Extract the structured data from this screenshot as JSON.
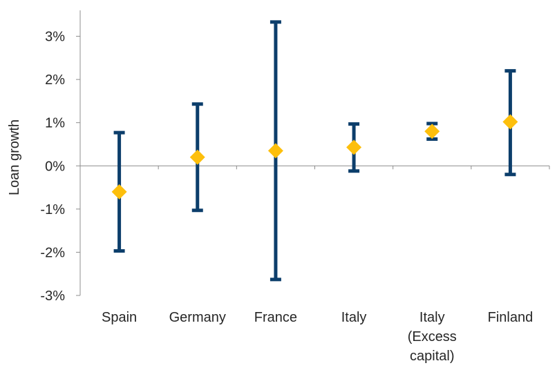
{
  "chart_data": {
    "type": "errorbar",
    "title": "",
    "xlabel": "",
    "ylabel": "Loan growth",
    "ylim": [
      -3,
      3.6
    ],
    "y_ticks": [
      -3,
      -2,
      -1,
      0,
      1,
      2,
      3
    ],
    "y_tick_labels": [
      "-3%",
      "-2%",
      "-1%",
      "0%",
      "1%",
      "2%",
      "3%"
    ],
    "grid": false,
    "legend": "none",
    "categories": [
      [
        "Spain"
      ],
      [
        "Germany"
      ],
      [
        "France"
      ],
      [
        "Italy"
      ],
      [
        "Italy",
        "(Excess",
        "capital)"
      ],
      [
        "Finland"
      ]
    ],
    "points": [
      {
        "estimate": -0.6,
        "low": -1.97,
        "high": 0.77
      },
      {
        "estimate": 0.2,
        "low": -1.03,
        "high": 1.43
      },
      {
        "estimate": 0.35,
        "low": -2.63,
        "high": 3.33
      },
      {
        "estimate": 0.43,
        "low": -0.12,
        "high": 0.97
      },
      {
        "estimate": 0.8,
        "low": 0.62,
        "high": 0.98
      },
      {
        "estimate": 1.02,
        "low": -0.2,
        "high": 2.2
      }
    ],
    "colors": {
      "bar": "#0c3e6b",
      "marker": "#fdbf0c",
      "axis": "#8c8c8c",
      "text": "#262626"
    }
  }
}
